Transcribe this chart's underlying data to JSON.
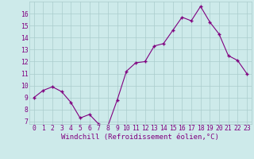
{
  "x": [
    0,
    1,
    2,
    3,
    4,
    5,
    6,
    7,
    8,
    9,
    10,
    11,
    12,
    13,
    14,
    15,
    16,
    17,
    18,
    19,
    20,
    21,
    22,
    23
  ],
  "y": [
    9.0,
    9.6,
    9.9,
    9.5,
    8.6,
    7.3,
    7.6,
    6.8,
    6.65,
    8.8,
    11.2,
    11.9,
    12.0,
    13.3,
    13.5,
    14.6,
    15.7,
    15.4,
    16.6,
    15.3,
    14.3,
    12.5,
    12.1,
    11.0
  ],
  "line_color": "#800080",
  "marker_color": "#800080",
  "bg_color": "#cdeaea",
  "grid_color": "#aacccc",
  "text_color": "#800080",
  "xlabel": "Windchill (Refroidissement éolien,°C)",
  "ylim": [
    6.8,
    17.0
  ],
  "yticks": [
    7,
    8,
    9,
    10,
    11,
    12,
    13,
    14,
    15,
    16
  ],
  "xticks": [
    0,
    1,
    2,
    3,
    4,
    5,
    6,
    7,
    8,
    9,
    10,
    11,
    12,
    13,
    14,
    15,
    16,
    17,
    18,
    19,
    20,
    21,
    22,
    23
  ],
  "tick_fontsize": 5.8,
  "xlabel_fontsize": 6.5
}
